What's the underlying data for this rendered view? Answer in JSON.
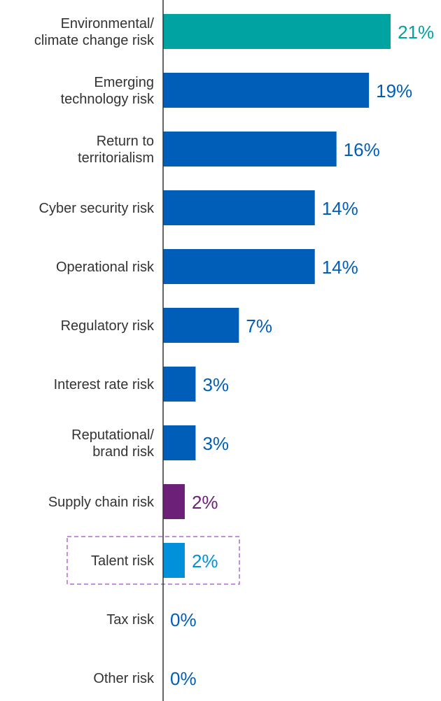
{
  "chart_data": {
    "type": "bar",
    "orientation": "horizontal",
    "title": "",
    "xlabel": "",
    "ylabel": "",
    "xlim": [
      0,
      21
    ],
    "grid": false,
    "legend": "none",
    "value_suffix": "%",
    "categories": [
      [
        "Environmental/",
        "climate change risk"
      ],
      [
        "Emerging",
        "technology risk"
      ],
      [
        "Return to",
        "territorialism"
      ],
      [
        "Cyber security risk"
      ],
      [
        "Operational risk"
      ],
      [
        "Regulatory risk"
      ],
      [
        "Interest rate risk"
      ],
      [
        "Reputational/",
        "brand risk"
      ],
      [
        "Supply chain risk"
      ],
      [
        "Talent risk"
      ],
      [
        "Tax risk"
      ],
      [
        "Other risk"
      ]
    ],
    "values": [
      21,
      19,
      16,
      14,
      14,
      7,
      3,
      3,
      2,
      2,
      0,
      0
    ],
    "value_labels": [
      "21%",
      "19%",
      "16%",
      "14%",
      "14%",
      "7%",
      "3%",
      "3%",
      "2%",
      "2%",
      "0%",
      "0%"
    ],
    "colors": [
      "#00a3a1",
      "#005eb8",
      "#005eb8",
      "#005eb8",
      "#005eb8",
      "#005eb8",
      "#005eb8",
      "#005eb8",
      "#6d2077",
      "#0091da",
      "#005eb8",
      "#005eb8"
    ],
    "highlighted_category": "Talent risk",
    "highlight_color": "#b36ad1"
  }
}
